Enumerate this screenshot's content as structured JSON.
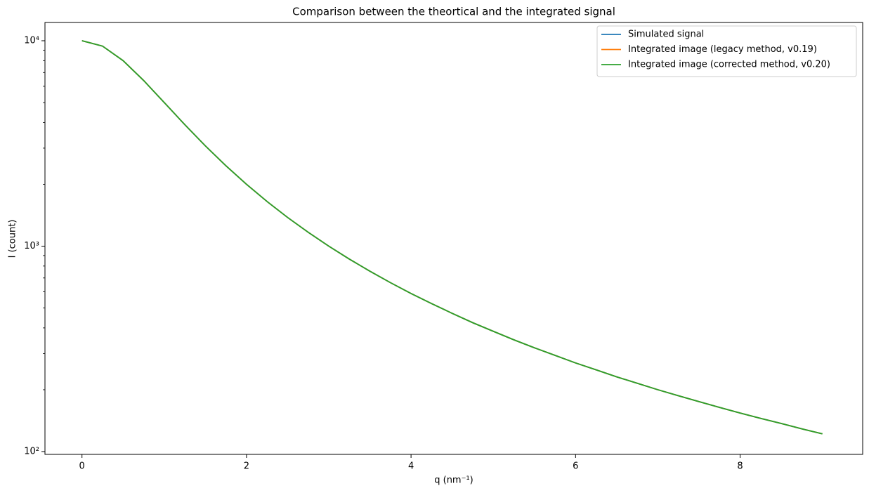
{
  "chart_data": {
    "type": "line",
    "title": "Comparison between the theortical and the integrated signal",
    "x_label": "q (nm⁻¹)",
    "y_label": "I (count)",
    "log_y": true,
    "legend": "upper right",
    "x": [
      0,
      0.25,
      0.5,
      0.75,
      1,
      1.25,
      1.5,
      1.75,
      2,
      2.25,
      2.5,
      2.75,
      3,
      3.25,
      3.5,
      3.75,
      4,
      4.25,
      4.5,
      4.75,
      5,
      5.25,
      5.5,
      5.75,
      6,
      6.25,
      6.5,
      6.75,
      7,
      7.25,
      7.5,
      7.75,
      8,
      8.25,
      8.5,
      8.75,
      9
    ],
    "series": [
      {
        "name": "Simulated signal",
        "color": "#1f77b4",
        "values": [
          10000,
          9412,
          8000,
          6400,
          5000,
          3902,
          3077,
          2462,
          2000,
          1649,
          1379,
          1168,
          1000,
          865,
          755,
          664,
          588,
          525,
          471,
          424,
          385,
          350,
          320,
          294,
          270,
          250,
          231,
          215,
          200,
          187,
          175,
          164,
          154,
          145,
          137,
          129,
          122
        ]
      },
      {
        "name": "Integrated image (legacy method, v0.19)",
        "color": "#ff7f0e",
        "values": [
          10000,
          9412,
          8000,
          6400,
          5000,
          3902,
          3077,
          2462,
          2000,
          1649,
          1379,
          1168,
          1000,
          865,
          755,
          664,
          588,
          525,
          471,
          424,
          385,
          350,
          320,
          294,
          270,
          250,
          231,
          215,
          200,
          187,
          175,
          164,
          154,
          145,
          137,
          129,
          122
        ]
      },
      {
        "name": "Integrated image (corrected method, v0.20)",
        "color": "#2ca02c",
        "values": [
          10000,
          9412,
          8000,
          6400,
          5000,
          3902,
          3077,
          2462,
          2000,
          1649,
          1379,
          1168,
          1000,
          865,
          755,
          664,
          588,
          525,
          471,
          424,
          385,
          350,
          320,
          294,
          270,
          250,
          231,
          215,
          200,
          187,
          175,
          164,
          154,
          145,
          137,
          129,
          122
        ]
      }
    ],
    "xlim": [
      -0.45,
      9.49
    ],
    "ylim": [
      96.9,
      12270
    ],
    "xticks": [
      0,
      2,
      4,
      6,
      8
    ],
    "yticks": [
      {
        "value": 100,
        "label": "10²"
      },
      {
        "value": 1000,
        "label": "10³"
      },
      {
        "value": 10000,
        "label": "10⁴"
      }
    ],
    "yminorticks": [
      200,
      300,
      400,
      500,
      600,
      700,
      800,
      900,
      2000,
      3000,
      4000,
      5000,
      6000,
      7000,
      8000,
      9000
    ]
  }
}
